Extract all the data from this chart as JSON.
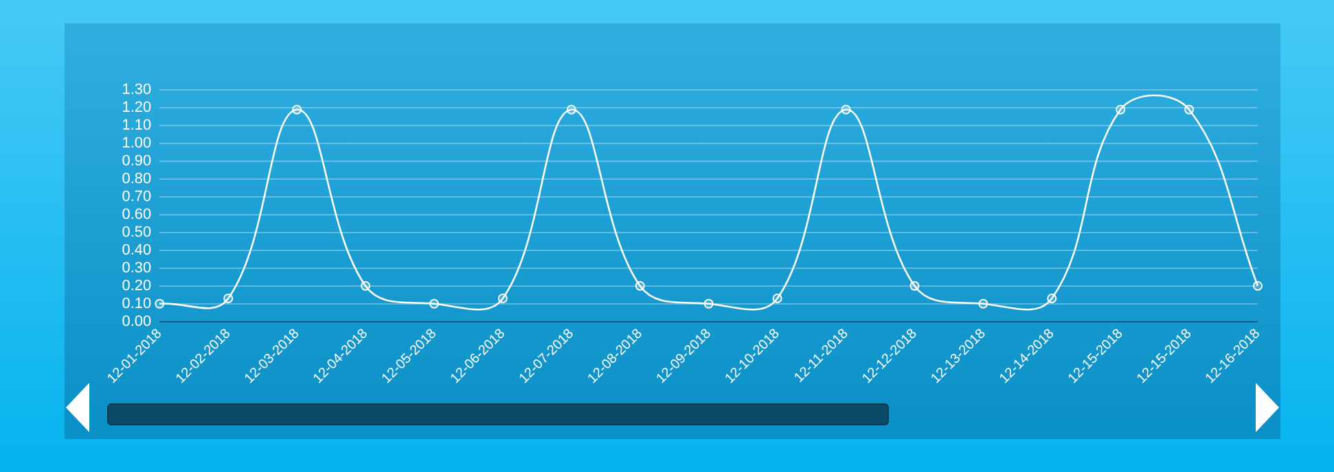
{
  "chart_data": {
    "type": "line",
    "categories": [
      "12-01-2018",
      "12-02-2018",
      "12-03-2018",
      "12-04-2018",
      "12-05-2018",
      "12-06-2018",
      "12-07-2018",
      "12-08-2018",
      "12-09-2018",
      "12-10-2018",
      "12-11-2018",
      "12-12-2018",
      "12-13-2018",
      "12-14-2018",
      "12-15-2018",
      "12-15-2018",
      "12-16-2018"
    ],
    "series": [
      {
        "color": "#ffffff",
        "values": [
          0.1,
          0.13,
          1.19,
          0.2,
          0.1,
          0.13,
          1.19,
          0.2,
          0.1,
          0.13,
          1.19,
          0.2,
          0.1,
          0.13,
          1.19,
          1.19,
          0.2
        ]
      }
    ],
    "ylim": [
      0,
      1.3
    ],
    "yticks": [
      {
        "value": 0,
        "label": "0.00"
      },
      {
        "value": 0.1,
        "label": "0.10"
      },
      {
        "value": 0.2,
        "label": "0.20"
      },
      {
        "value": 0.3,
        "label": "0.30"
      },
      {
        "value": 0.4,
        "label": "0.40"
      },
      {
        "value": 0.5,
        "label": "0.50"
      },
      {
        "value": 0.6,
        "label": "0.60"
      },
      {
        "value": 0.7,
        "label": "0.70"
      },
      {
        "value": 0.8,
        "label": "0.80"
      },
      {
        "value": 0.9,
        "label": "0.90"
      },
      {
        "value": 1,
        "label": "1.00"
      },
      {
        "value": 1.1,
        "label": "1.10"
      },
      {
        "value": 1.2,
        "label": "1.20"
      },
      {
        "value": 1.3,
        "label": "1.30"
      }
    ],
    "grid": "y",
    "legend": false,
    "marker": "circle",
    "line_style": "solid"
  }
}
